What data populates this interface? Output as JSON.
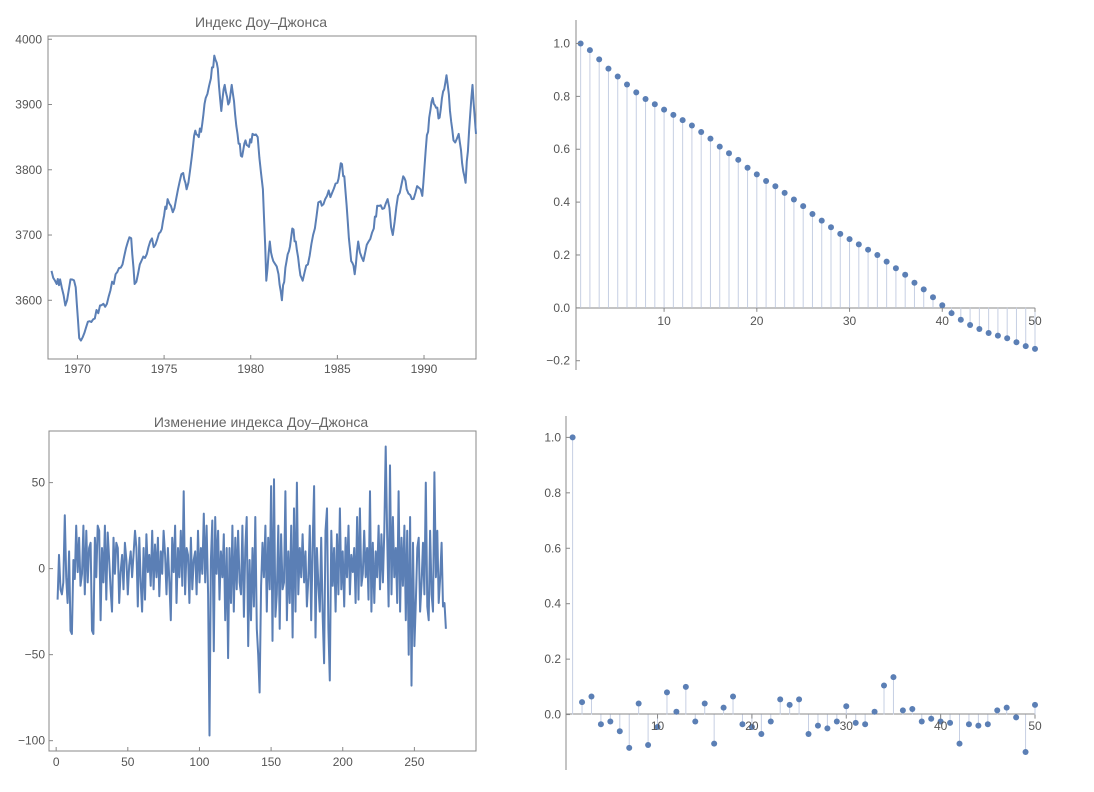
{
  "colors": {
    "series": "#5b7fb5",
    "stem": "#c6cfe3",
    "axis": "#888888",
    "text": "#555555"
  },
  "chart_data": [
    {
      "type": "line",
      "title": "Индекс Доу–Джонса",
      "xlim": [
        1968.3,
        1993.0
      ],
      "ylim": [
        3510,
        4005
      ],
      "xticks": [
        "1970",
        "1975",
        "1980",
        "1985",
        "1990"
      ],
      "yticks": [
        "3600",
        "3700",
        "3800",
        "3900",
        "4000"
      ],
      "knots": [
        [
          1968.5,
          3645
        ],
        [
          1968.8,
          3625
        ],
        [
          1969.0,
          3632
        ],
        [
          1969.3,
          3592
        ],
        [
          1969.6,
          3632
        ],
        [
          1969.9,
          3620
        ],
        [
          1970.1,
          3542
        ],
        [
          1970.4,
          3550
        ],
        [
          1970.7,
          3568
        ],
        [
          1971.0,
          3572
        ],
        [
          1971.3,
          3592
        ],
        [
          1971.6,
          3590
        ],
        [
          1971.9,
          3615
        ],
        [
          1972.2,
          3640
        ],
        [
          1972.5,
          3650
        ],
        [
          1972.8,
          3680
        ],
        [
          1973.1,
          3695
        ],
        [
          1973.3,
          3625
        ],
        [
          1973.6,
          3655
        ],
        [
          1973.9,
          3665
        ],
        [
          1974.2,
          3690
        ],
        [
          1974.5,
          3685
        ],
        [
          1974.8,
          3705
        ],
        [
          1975.0,
          3730
        ],
        [
          1975.2,
          3755
        ],
        [
          1975.5,
          3735
        ],
        [
          1975.8,
          3770
        ],
        [
          1976.1,
          3795
        ],
        [
          1976.3,
          3770
        ],
        [
          1976.6,
          3820
        ],
        [
          1976.8,
          3860
        ],
        [
          1977.0,
          3850
        ],
        [
          1977.2,
          3870
        ],
        [
          1977.4,
          3910
        ],
        [
          1977.7,
          3940
        ],
        [
          1977.9,
          3975
        ],
        [
          1978.1,
          3955
        ],
        [
          1978.3,
          3890
        ],
        [
          1978.5,
          3930
        ],
        [
          1978.7,
          3900
        ],
        [
          1978.9,
          3930
        ],
        [
          1979.1,
          3885
        ],
        [
          1979.3,
          3840
        ],
        [
          1979.5,
          3820
        ],
        [
          1979.7,
          3845
        ],
        [
          1979.9,
          3835
        ],
        [
          1980.1,
          3855
        ],
        [
          1980.4,
          3850
        ],
        [
          1980.7,
          3770
        ],
        [
          1980.9,
          3630
        ],
        [
          1981.1,
          3690
        ],
        [
          1981.3,
          3660
        ],
        [
          1981.6,
          3640
        ],
        [
          1981.8,
          3600
        ],
        [
          1982.0,
          3650
        ],
        [
          1982.2,
          3675
        ],
        [
          1982.4,
          3710
        ],
        [
          1982.6,
          3690
        ],
        [
          1982.8,
          3650
        ],
        [
          1983.0,
          3630
        ],
        [
          1983.3,
          3655
        ],
        [
          1983.6,
          3700
        ],
        [
          1983.9,
          3750
        ],
        [
          1984.1,
          3745
        ],
        [
          1984.4,
          3760
        ],
        [
          1984.7,
          3765
        ],
        [
          1985.0,
          3780
        ],
        [
          1985.2,
          3810
        ],
        [
          1985.4,
          3790
        ],
        [
          1985.6,
          3720
        ],
        [
          1985.8,
          3660
        ],
        [
          1986.0,
          3640
        ],
        [
          1986.2,
          3690
        ],
        [
          1986.5,
          3660
        ],
        [
          1986.8,
          3690
        ],
        [
          1987.1,
          3710
        ],
        [
          1987.3,
          3745
        ],
        [
          1987.6,
          3740
        ],
        [
          1987.9,
          3755
        ],
        [
          1988.2,
          3700
        ],
        [
          1988.5,
          3760
        ],
        [
          1988.8,
          3790
        ],
        [
          1989.0,
          3770
        ],
        [
          1989.3,
          3755
        ],
        [
          1989.6,
          3775
        ],
        [
          1989.9,
          3760
        ],
        [
          1990.1,
          3830
        ],
        [
          1990.3,
          3880
        ],
        [
          1990.5,
          3910
        ],
        [
          1990.7,
          3895
        ],
        [
          1990.9,
          3880
        ],
        [
          1991.1,
          3920
        ],
        [
          1991.3,
          3945
        ],
        [
          1991.5,
          3890
        ],
        [
          1991.7,
          3845
        ],
        [
          1992.0,
          3855
        ],
        [
          1992.2,
          3810
        ],
        [
          1992.4,
          3780
        ],
        [
          1992.6,
          3860
        ],
        [
          1992.8,
          3930
        ],
        [
          1993.0,
          3855
        ]
      ]
    },
    {
      "type": "stem",
      "xlim": [
        0.5,
        50
      ],
      "ylim": [
        -0.22,
        1.07
      ],
      "xticks": [
        "10",
        "20",
        "30",
        "40",
        "50"
      ],
      "yticks": [
        "−0.2",
        "0.0",
        "0.2",
        "0.4",
        "0.6",
        "0.8",
        "1.0"
      ],
      "x": [
        1,
        2,
        3,
        4,
        5,
        6,
        7,
        8,
        9,
        10,
        11,
        12,
        13,
        14,
        15,
        16,
        17,
        18,
        19,
        20,
        21,
        22,
        23,
        24,
        25,
        26,
        27,
        28,
        29,
        30,
        31,
        32,
        33,
        34,
        35,
        36,
        37,
        38,
        39,
        40,
        41,
        42,
        43,
        44,
        45,
        46,
        47,
        48,
        49,
        50
      ],
      "values": [
        1.0,
        0.975,
        0.94,
        0.905,
        0.875,
        0.845,
        0.815,
        0.79,
        0.77,
        0.75,
        0.73,
        0.71,
        0.69,
        0.665,
        0.64,
        0.61,
        0.585,
        0.56,
        0.53,
        0.505,
        0.48,
        0.46,
        0.435,
        0.41,
        0.385,
        0.355,
        0.33,
        0.305,
        0.28,
        0.26,
        0.24,
        0.22,
        0.2,
        0.175,
        0.15,
        0.125,
        0.095,
        0.07,
        0.04,
        0.01,
        -0.02,
        -0.045,
        -0.065,
        -0.08,
        -0.095,
        -0.105,
        -0.115,
        -0.13,
        -0.145,
        -0.155
      ]
    },
    {
      "type": "line",
      "title": "Изменение индекса Доу–Джонса",
      "xlim": [
        -5,
        293
      ],
      "ylim": [
        -106,
        80
      ],
      "xticks": [
        "0",
        "50",
        "100",
        "150",
        "200",
        "250"
      ],
      "yticks": [
        "−100",
        "−50",
        "0",
        "50"
      ],
      "x_start": 1,
      "values": [
        -18,
        8,
        -12,
        -15,
        -8,
        31,
        -5,
        -20,
        10,
        -36,
        -38,
        5,
        -6,
        25,
        -2,
        18,
        -10,
        -3,
        25,
        -15,
        22,
        -8,
        12,
        15,
        -36,
        -38,
        18,
        -5,
        25,
        22,
        -30,
        12,
        -8,
        25,
        -18,
        21,
        5,
        -12,
        -25,
        18,
        -3,
        15,
        12,
        -20,
        -2,
        8,
        -12,
        15,
        5,
        -15,
        2,
        10,
        -5,
        8,
        22,
        12,
        -22,
        18,
        -8,
        -25,
        12,
        -18,
        20,
        -2,
        8,
        -10,
        22,
        -12,
        14,
        -5,
        18,
        -16,
        10,
        -3,
        22,
        8,
        -15,
        12,
        -8,
        -30,
        18,
        -2,
        25,
        -20,
        12,
        -5,
        22,
        -10,
        45,
        -15,
        12,
        8,
        -20,
        18,
        -12,
        5,
        10,
        -15,
        22,
        -8,
        12,
        -3,
        32,
        -8,
        25,
        -15,
        -97,
        5,
        28,
        -48,
        30,
        -3,
        22,
        -18,
        10,
        -5,
        20,
        -30,
        12,
        -52,
        12,
        -20,
        25,
        -25,
        18,
        -12,
        22,
        -8,
        -15,
        25,
        -28,
        12,
        30,
        -45,
        5,
        -30,
        12,
        -22,
        30,
        -35,
        -50,
        -72,
        -10,
        15,
        -5,
        25,
        -25,
        18,
        -12,
        48,
        -42,
        52,
        -28,
        -15,
        25,
        -35,
        20,
        -12,
        -8,
        45,
        -30,
        10,
        -20,
        25,
        -40,
        35,
        -25,
        50,
        -15,
        12,
        -5,
        20,
        -8,
        10,
        -22,
        -5,
        25,
        -30,
        15,
        48,
        -40,
        12,
        -10,
        -25,
        18,
        -28,
        -55,
        22,
        35,
        -35,
        -65,
        22,
        -10,
        12,
        -25,
        20,
        -15,
        35,
        -12,
        10,
        -22,
        18,
        -5,
        25,
        -15,
        8,
        -2,
        12,
        -20,
        30,
        -18,
        35,
        -10,
        -3,
        22,
        -5,
        12,
        -18,
        45,
        -25,
        15,
        -20,
        10,
        -5,
        25,
        -12,
        20,
        -8,
        22,
        71,
        18,
        -22,
        60,
        -15,
        30,
        -5,
        12,
        -20,
        45,
        -25,
        18,
        -10,
        25,
        -30,
        22,
        -50,
        30,
        -68,
        15,
        -45,
        -20,
        12,
        18,
        -25,
        -8,
        15,
        -15,
        50,
        -22,
        -30,
        22,
        -15,
        -25,
        56,
        -5,
        22,
        -20,
        -5,
        15,
        -22,
        -20,
        -35
      ]
    },
    {
      "type": "stem",
      "xlim": [
        0.3,
        50
      ],
      "ylim": [
        -0.2,
        1.07
      ],
      "xticks": [
        "10",
        "20",
        "30",
        "40",
        "50"
      ],
      "yticks": [
        "0.0",
        "0.2",
        "0.4",
        "0.6",
        "0.8",
        "1.0"
      ],
      "x": [
        1,
        2,
        3,
        4,
        5,
        6,
        7,
        8,
        9,
        10,
        11,
        12,
        13,
        14,
        15,
        16,
        17,
        18,
        19,
        20,
        21,
        22,
        23,
        24,
        25,
        26,
        27,
        28,
        29,
        30,
        31,
        32,
        33,
        34,
        35,
        36,
        37,
        38,
        39,
        40,
        41,
        42,
        43,
        44,
        45,
        46,
        47,
        48,
        49,
        50
      ],
      "values": [
        1.0,
        0.045,
        0.065,
        -0.035,
        -0.025,
        -0.06,
        -0.12,
        0.04,
        -0.11,
        -0.045,
        0.08,
        0.01,
        0.1,
        -0.025,
        0.04,
        -0.105,
        0.025,
        0.065,
        -0.035,
        -0.045,
        -0.07,
        -0.025,
        0.055,
        0.035,
        0.055,
        -0.07,
        -0.04,
        -0.05,
        -0.025,
        0.03,
        -0.03,
        -0.035,
        0.01,
        0.105,
        0.135,
        0.015,
        0.02,
        -0.025,
        -0.015,
        -0.025,
        -0.03,
        -0.105,
        -0.035,
        -0.04,
        -0.035,
        0.015,
        0.025,
        -0.01,
        -0.135,
        0.035
      ]
    }
  ]
}
